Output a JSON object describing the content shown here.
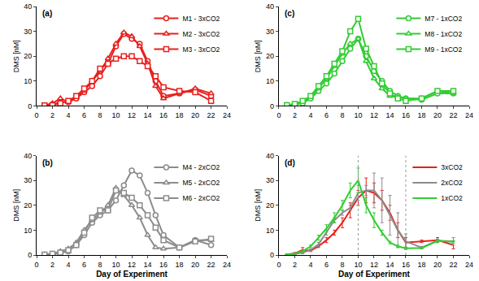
{
  "chart_data": [
    {
      "type": "line",
      "title": "(a)",
      "y_label": "DMS [nM]",
      "xlim": [
        0,
        24
      ],
      "xticks": [
        0,
        2,
        4,
        6,
        8,
        10,
        12,
        14,
        16,
        18,
        20,
        22,
        24
      ],
      "ylim": [
        0,
        40
      ],
      "yticks": [
        0,
        10,
        20,
        30,
        40
      ],
      "grid": false,
      "legend": "upper right",
      "x": [
        1,
        2,
        3,
        4,
        5,
        6,
        7,
        8,
        9,
        10,
        11,
        12,
        13,
        14,
        15,
        16,
        18,
        20,
        22
      ],
      "series": [
        {
          "name": "M1 - 3xCO2",
          "color": "#e8201e",
          "marker": "circle",
          "values": [
            0.2,
            0.5,
            1.5,
            1.5,
            3,
            5.5,
            8,
            12,
            17,
            24,
            29,
            27,
            25,
            18,
            10,
            4,
            5,
            6.5,
            4
          ]
        },
        {
          "name": "M2 - 3xCO2",
          "color": "#e8201e",
          "marker": "triangle-up",
          "values": [
            0.2,
            1,
            3,
            1.5,
            3.5,
            6,
            10,
            14,
            19,
            25,
            29.5,
            28,
            24,
            17,
            8,
            3,
            5,
            7,
            5
          ]
        },
        {
          "name": "M3 - 3xCO2",
          "color": "#e8201e",
          "marker": "square",
          "values": [
            0.2,
            0.3,
            1,
            2,
            4,
            7,
            10,
            15,
            17,
            19,
            20,
            20,
            18,
            16,
            12,
            7.5,
            6,
            5.5,
            2
          ]
        }
      ]
    },
    {
      "type": "line",
      "title": "(b)",
      "x_label": "Day of Experiment",
      "y_label": "DMS [nM]",
      "xlim": [
        0,
        24
      ],
      "xticks": [
        0,
        2,
        4,
        6,
        8,
        10,
        12,
        14,
        16,
        18,
        20,
        22,
        24
      ],
      "ylim": [
        0,
        40
      ],
      "yticks": [
        0,
        10,
        20,
        30,
        40
      ],
      "grid": false,
      "legend": "upper right",
      "x": [
        1,
        2,
        3,
        4,
        5,
        6,
        7,
        8,
        9,
        10,
        11,
        12,
        13,
        14,
        15,
        16,
        18,
        20,
        22
      ],
      "series": [
        {
          "name": "M4 - 2xCO2",
          "color": "#8c8c8c",
          "marker": "circle",
          "values": [
            0.2,
            0.3,
            0.8,
            1.5,
            4,
            8,
            13,
            16,
            18,
            22,
            28,
            34,
            32,
            25,
            16,
            8,
            3,
            6,
            4
          ]
        },
        {
          "name": "M5 - 2xCO2",
          "color": "#8c8c8c",
          "marker": "triangle-up",
          "values": [
            0.2,
            0.5,
            1.5,
            2.5,
            5,
            10,
            14,
            17,
            20,
            27,
            24,
            20,
            15,
            8,
            3,
            2.5,
            3,
            6,
            6
          ]
        },
        {
          "name": "M6 - 2xCO2",
          "color": "#8c8c8c",
          "marker": "square",
          "values": [
            0.2,
            0.5,
            1,
            2,
            4,
            9,
            15,
            18,
            18,
            26,
            25,
            23,
            20,
            16,
            11,
            6,
            3,
            5.5,
            6.5
          ]
        }
      ]
    },
    {
      "type": "line",
      "title": "(c)",
      "y_label": "DMS [nM]",
      "xlim": [
        0,
        24
      ],
      "xticks": [
        0,
        2,
        4,
        6,
        8,
        10,
        12,
        14,
        16,
        18,
        20,
        22,
        24
      ],
      "ylim": [
        0,
        40
      ],
      "yticks": [
        0,
        10,
        20,
        30,
        40
      ],
      "grid": false,
      "legend": "upper right",
      "x": [
        1,
        2,
        3,
        4,
        5,
        6,
        7,
        8,
        9,
        10,
        11,
        12,
        13,
        14,
        15,
        16,
        18,
        20,
        22
      ],
      "series": [
        {
          "name": "M7 - 1xCO2",
          "color": "#33cc33",
          "marker": "circle",
          "values": [
            0.3,
            0.5,
            1,
            3,
            6,
            9,
            13,
            18,
            23,
            27,
            20,
            14,
            10,
            6,
            4,
            3,
            2.5,
            5,
            5
          ]
        },
        {
          "name": "M8 - 1xCO2",
          "color": "#33cc33",
          "marker": "triangle-up",
          "values": [
            0.3,
            0.6,
            1.5,
            3.5,
            7,
            11,
            16,
            21,
            25,
            27,
            18,
            11,
            7,
            4,
            3.5,
            3,
            3,
            6,
            5
          ]
        },
        {
          "name": "M9 - 1xCO2",
          "color": "#33cc33",
          "marker": "square",
          "values": [
            0.3,
            0.8,
            2,
            4,
            8,
            12,
            17,
            22,
            30,
            35,
            23,
            16,
            9,
            5,
            3,
            2,
            3,
            6,
            6
          ]
        }
      ]
    },
    {
      "type": "line",
      "title": "(d)",
      "x_label": "Day of Experiment",
      "y_label": "DMS [nM]",
      "xlim": [
        0,
        24
      ],
      "xticks": [
        0,
        2,
        4,
        6,
        8,
        10,
        12,
        14,
        16,
        18,
        20,
        22,
        24
      ],
      "ylim": [
        0,
        40
      ],
      "yticks": [
        0,
        10,
        20,
        30,
        40
      ],
      "grid": false,
      "legend": "upper right",
      "vlines": [
        10,
        16
      ],
      "x": [
        1,
        2,
        3,
        4,
        5,
        6,
        7,
        8,
        9,
        10,
        11,
        12,
        13,
        14,
        15,
        16,
        18,
        20,
        22
      ],
      "series": [
        {
          "name": "3xCO2",
          "color": "#e8201e",
          "marker": "none",
          "values": [
            0.2,
            0.6,
            2,
            1.7,
            3.5,
            6,
            9,
            13,
            18,
            23,
            26,
            25,
            22,
            17,
            10,
            5,
            5.5,
            6,
            4
          ],
          "error": [
            0.1,
            0.4,
            1,
            0.3,
            0.5,
            1,
            1,
            2,
            3,
            3,
            5,
            4,
            4,
            3,
            3,
            2,
            0.5,
            1,
            1.5
          ]
        },
        {
          "name": "2xCO2",
          "color": "#8c8c8c",
          "marker": "none",
          "values": [
            0.2,
            0.4,
            1,
            2,
            4.3,
            9,
            14,
            17,
            19,
            25,
            26,
            26,
            22,
            16,
            10,
            5.5,
            3,
            5.8,
            5.5
          ],
          "error": [
            0.1,
            0.2,
            0.5,
            0.5,
            0.8,
            1,
            1,
            1,
            1,
            3,
            2,
            7,
            9,
            8,
            7,
            3,
            0.5,
            0.5,
            1.5
          ]
        },
        {
          "name": "1xCO2",
          "color": "#33cc33",
          "marker": "none",
          "values": [
            0.3,
            0.6,
            1.5,
            3.5,
            7,
            10.7,
            15,
            20,
            26,
            30,
            20,
            14,
            9,
            5,
            3.5,
            2.7,
            2.8,
            5.7,
            5.3
          ],
          "error": [
            0.1,
            0.2,
            0.5,
            0.5,
            1,
            1.5,
            2,
            2,
            3,
            5,
            3,
            3,
            1,
            0.5,
            0.5,
            0.5,
            0.3,
            0.5,
            0.5
          ]
        }
      ]
    }
  ]
}
